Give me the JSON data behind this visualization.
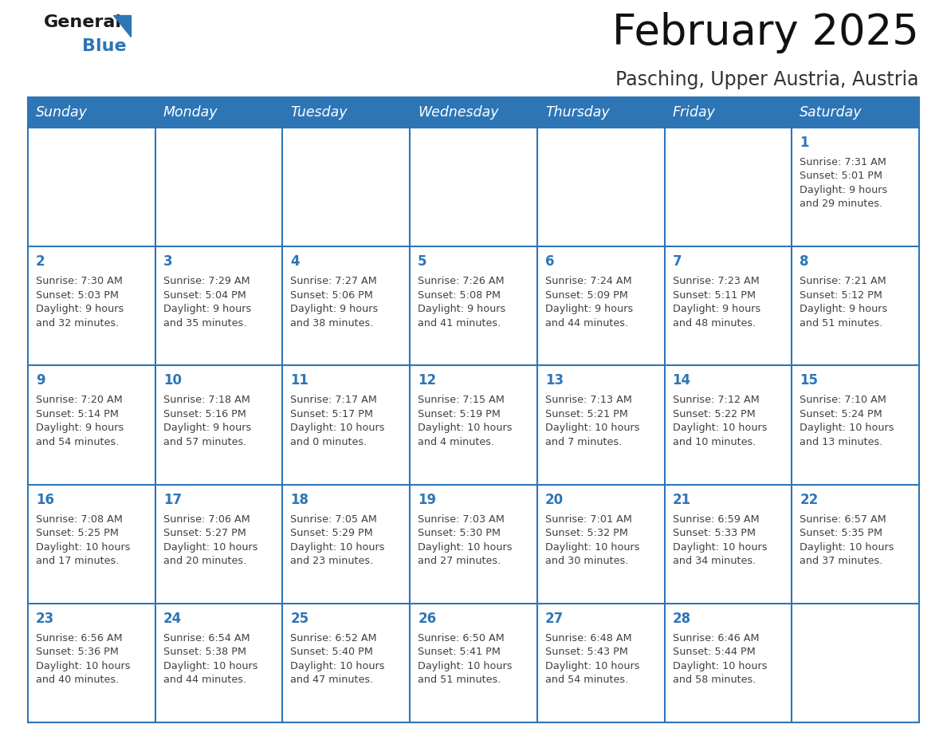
{
  "title": "February 2025",
  "subtitle": "Pasching, Upper Austria, Austria",
  "header_bg": "#2E75B6",
  "header_text_color": "#FFFFFF",
  "cell_bg_white": "#FFFFFF",
  "day_number_color": "#2E75B6",
  "cell_text_color": "#404040",
  "grid_line_color": "#2E75B6",
  "days_of_week": [
    "Sunday",
    "Monday",
    "Tuesday",
    "Wednesday",
    "Thursday",
    "Friday",
    "Saturday"
  ],
  "weeks": [
    [
      {
        "day": null,
        "info": null
      },
      {
        "day": null,
        "info": null
      },
      {
        "day": null,
        "info": null
      },
      {
        "day": null,
        "info": null
      },
      {
        "day": null,
        "info": null
      },
      {
        "day": null,
        "info": null
      },
      {
        "day": "1",
        "info": "Sunrise: 7:31 AM\nSunset: 5:01 PM\nDaylight: 9 hours\nand 29 minutes."
      }
    ],
    [
      {
        "day": "2",
        "info": "Sunrise: 7:30 AM\nSunset: 5:03 PM\nDaylight: 9 hours\nand 32 minutes."
      },
      {
        "day": "3",
        "info": "Sunrise: 7:29 AM\nSunset: 5:04 PM\nDaylight: 9 hours\nand 35 minutes."
      },
      {
        "day": "4",
        "info": "Sunrise: 7:27 AM\nSunset: 5:06 PM\nDaylight: 9 hours\nand 38 minutes."
      },
      {
        "day": "5",
        "info": "Sunrise: 7:26 AM\nSunset: 5:08 PM\nDaylight: 9 hours\nand 41 minutes."
      },
      {
        "day": "6",
        "info": "Sunrise: 7:24 AM\nSunset: 5:09 PM\nDaylight: 9 hours\nand 44 minutes."
      },
      {
        "day": "7",
        "info": "Sunrise: 7:23 AM\nSunset: 5:11 PM\nDaylight: 9 hours\nand 48 minutes."
      },
      {
        "day": "8",
        "info": "Sunrise: 7:21 AM\nSunset: 5:12 PM\nDaylight: 9 hours\nand 51 minutes."
      }
    ],
    [
      {
        "day": "9",
        "info": "Sunrise: 7:20 AM\nSunset: 5:14 PM\nDaylight: 9 hours\nand 54 minutes."
      },
      {
        "day": "10",
        "info": "Sunrise: 7:18 AM\nSunset: 5:16 PM\nDaylight: 9 hours\nand 57 minutes."
      },
      {
        "day": "11",
        "info": "Sunrise: 7:17 AM\nSunset: 5:17 PM\nDaylight: 10 hours\nand 0 minutes."
      },
      {
        "day": "12",
        "info": "Sunrise: 7:15 AM\nSunset: 5:19 PM\nDaylight: 10 hours\nand 4 minutes."
      },
      {
        "day": "13",
        "info": "Sunrise: 7:13 AM\nSunset: 5:21 PM\nDaylight: 10 hours\nand 7 minutes."
      },
      {
        "day": "14",
        "info": "Sunrise: 7:12 AM\nSunset: 5:22 PM\nDaylight: 10 hours\nand 10 minutes."
      },
      {
        "day": "15",
        "info": "Sunrise: 7:10 AM\nSunset: 5:24 PM\nDaylight: 10 hours\nand 13 minutes."
      }
    ],
    [
      {
        "day": "16",
        "info": "Sunrise: 7:08 AM\nSunset: 5:25 PM\nDaylight: 10 hours\nand 17 minutes."
      },
      {
        "day": "17",
        "info": "Sunrise: 7:06 AM\nSunset: 5:27 PM\nDaylight: 10 hours\nand 20 minutes."
      },
      {
        "day": "18",
        "info": "Sunrise: 7:05 AM\nSunset: 5:29 PM\nDaylight: 10 hours\nand 23 minutes."
      },
      {
        "day": "19",
        "info": "Sunrise: 7:03 AM\nSunset: 5:30 PM\nDaylight: 10 hours\nand 27 minutes."
      },
      {
        "day": "20",
        "info": "Sunrise: 7:01 AM\nSunset: 5:32 PM\nDaylight: 10 hours\nand 30 minutes."
      },
      {
        "day": "21",
        "info": "Sunrise: 6:59 AM\nSunset: 5:33 PM\nDaylight: 10 hours\nand 34 minutes."
      },
      {
        "day": "22",
        "info": "Sunrise: 6:57 AM\nSunset: 5:35 PM\nDaylight: 10 hours\nand 37 minutes."
      }
    ],
    [
      {
        "day": "23",
        "info": "Sunrise: 6:56 AM\nSunset: 5:36 PM\nDaylight: 10 hours\nand 40 minutes."
      },
      {
        "day": "24",
        "info": "Sunrise: 6:54 AM\nSunset: 5:38 PM\nDaylight: 10 hours\nand 44 minutes."
      },
      {
        "day": "25",
        "info": "Sunrise: 6:52 AM\nSunset: 5:40 PM\nDaylight: 10 hours\nand 47 minutes."
      },
      {
        "day": "26",
        "info": "Sunrise: 6:50 AM\nSunset: 5:41 PM\nDaylight: 10 hours\nand 51 minutes."
      },
      {
        "day": "27",
        "info": "Sunrise: 6:48 AM\nSunset: 5:43 PM\nDaylight: 10 hours\nand 54 minutes."
      },
      {
        "day": "28",
        "info": "Sunrise: 6:46 AM\nSunset: 5:44 PM\nDaylight: 10 hours\nand 58 minutes."
      },
      {
        "day": null,
        "info": null
      }
    ]
  ],
  "logo_general_color": "#1a1a1a",
  "logo_blue_color": "#2E75B6",
  "title_fontsize": 38,
  "subtitle_fontsize": 17,
  "header_fontsize": 12.5,
  "day_num_fontsize": 12,
  "cell_text_fontsize": 9.2,
  "fig_width": 11.88,
  "fig_height": 9.18,
  "dpi": 100
}
